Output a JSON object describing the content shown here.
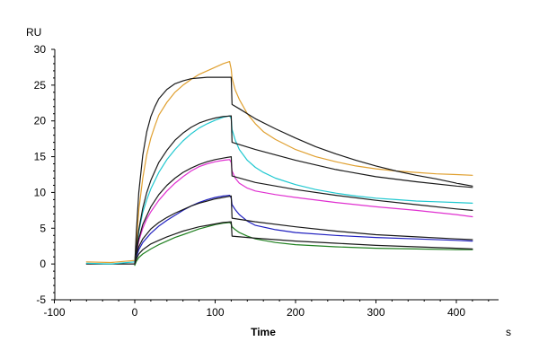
{
  "chart_data": {
    "type": "line",
    "title": "",
    "xlabel": "Time",
    "ylabel": "",
    "y_unit": "RU",
    "x_unit": "s",
    "xlim": [
      -100,
      440
    ],
    "ylim": [
      -5,
      30
    ],
    "x_ticks": [
      -100,
      0,
      100,
      200,
      300,
      400
    ],
    "y_ticks": [
      -5,
      0,
      5,
      10,
      15,
      20,
      25,
      30
    ],
    "grid": false,
    "legend": "none",
    "series": [
      {
        "color": "#E0A030",
        "x": [
          -60,
          -30,
          0,
          2,
          5,
          10,
          15,
          20,
          25,
          30,
          40,
          50,
          60,
          70,
          80,
          90,
          100,
          110,
          118,
          120,
          121,
          125,
          130,
          140,
          150,
          160,
          175,
          200,
          225,
          250,
          275,
          300,
          325,
          350,
          375,
          400,
          420
        ],
        "y": [
          0.3,
          0.2,
          0.5,
          3.0,
          7.5,
          12.0,
          15.3,
          17.6,
          19.3,
          20.8,
          22.6,
          24.0,
          25.0,
          25.8,
          26.5,
          27.0,
          27.5,
          28.0,
          28.3,
          27.2,
          26.0,
          24.3,
          23.0,
          21.0,
          19.6,
          18.5,
          17.4,
          16.0,
          15.0,
          14.3,
          13.7,
          13.3,
          13.0,
          12.8,
          12.6,
          12.5,
          12.4
        ]
      },
      {
        "color": "#1a1a1a",
        "x": [
          -60,
          -30,
          0,
          2,
          5,
          10,
          15,
          20,
          25,
          30,
          40,
          50,
          60,
          70,
          80,
          90,
          100,
          110,
          120,
          121,
          130,
          150,
          175,
          200,
          225,
          250,
          275,
          300,
          325,
          350,
          375,
          400,
          420
        ],
        "y": [
          0,
          0,
          0,
          4.5,
          10.0,
          15.2,
          18.5,
          20.6,
          22.0,
          23.1,
          24.4,
          25.2,
          25.6,
          25.9,
          26.0,
          26.1,
          26.1,
          26.1,
          26.1,
          22.3,
          21.7,
          20.3,
          18.9,
          17.6,
          16.4,
          15.4,
          14.5,
          13.7,
          13.0,
          12.4,
          11.9,
          11.3,
          10.9
        ]
      },
      {
        "color": "#20C8D0",
        "x": [
          -60,
          -30,
          0,
          2,
          5,
          10,
          15,
          20,
          30,
          40,
          50,
          60,
          70,
          80,
          90,
          100,
          110,
          118,
          120,
          121,
          125,
          130,
          140,
          150,
          160,
          175,
          200,
          225,
          250,
          275,
          300,
          325,
          350,
          375,
          400,
          420
        ],
        "y": [
          0.1,
          0,
          0.3,
          2.0,
          4.5,
          7.2,
          9.0,
          10.5,
          12.8,
          14.6,
          16.0,
          17.2,
          18.2,
          19.0,
          19.6,
          20.1,
          20.5,
          20.7,
          20.3,
          18.8,
          17.3,
          16.0,
          14.5,
          13.5,
          12.8,
          12.0,
          11.1,
          10.4,
          9.9,
          9.5,
          9.2,
          9.0,
          8.8,
          8.7,
          8.6,
          8.5
        ]
      },
      {
        "color": "#1a1a1a",
        "x": [
          0,
          2,
          5,
          10,
          15,
          20,
          30,
          40,
          50,
          60,
          70,
          80,
          90,
          100,
          110,
          120,
          121,
          150,
          200,
          250,
          300,
          350,
          400,
          420
        ],
        "y": [
          0,
          2.2,
          4.8,
          7.8,
          10.0,
          11.7,
          14.2,
          15.9,
          17.3,
          18.3,
          19.1,
          19.7,
          20.1,
          20.4,
          20.6,
          20.7,
          17.0,
          16.0,
          14.5,
          13.2,
          12.2,
          11.5,
          10.9,
          10.7
        ]
      },
      {
        "color": "#E030D0",
        "x": [
          0,
          2,
          5,
          10,
          15,
          20,
          30,
          40,
          50,
          60,
          70,
          80,
          90,
          100,
          110,
          118,
          120,
          121,
          125,
          130,
          140,
          150,
          175,
          200,
          250,
          300,
          350,
          400,
          420
        ],
        "y": [
          0,
          1.5,
          3.2,
          5.0,
          6.3,
          7.3,
          8.9,
          10.2,
          11.3,
          12.2,
          13.0,
          13.6,
          14.0,
          14.3,
          14.5,
          14.6,
          14.2,
          13.0,
          12.0,
          11.3,
          10.6,
          10.2,
          9.7,
          9.3,
          8.6,
          8.0,
          7.5,
          6.9,
          6.6
        ]
      },
      {
        "color": "#1a1a1a",
        "x": [
          0,
          2,
          5,
          10,
          20,
          30,
          40,
          50,
          60,
          70,
          80,
          90,
          100,
          110,
          120,
          121,
          150,
          200,
          250,
          300,
          350,
          400,
          420
        ],
        "y": [
          0,
          1.7,
          3.5,
          5.5,
          8.0,
          9.7,
          11.0,
          12.0,
          12.8,
          13.4,
          13.9,
          14.3,
          14.6,
          14.8,
          15.0,
          12.3,
          11.4,
          10.4,
          9.6,
          8.9,
          8.3,
          7.7,
          7.5
        ]
      },
      {
        "color": "#2020C0",
        "x": [
          0,
          2,
          5,
          10,
          20,
          30,
          40,
          50,
          60,
          70,
          80,
          90,
          100,
          110,
          118,
          120,
          121,
          125,
          130,
          140,
          150,
          175,
          200,
          250,
          300,
          350,
          400,
          420
        ],
        "y": [
          0,
          1.0,
          2.0,
          3.0,
          4.3,
          5.3,
          6.1,
          6.8,
          7.5,
          8.1,
          8.6,
          9.0,
          9.3,
          9.5,
          9.6,
          9.2,
          8.3,
          7.6,
          6.9,
          6.0,
          5.4,
          4.8,
          4.4,
          4.0,
          3.7,
          3.5,
          3.3,
          3.2
        ]
      },
      {
        "color": "#1a1a1a",
        "x": [
          0,
          2,
          5,
          10,
          20,
          30,
          40,
          50,
          60,
          70,
          80,
          90,
          100,
          110,
          120,
          121,
          150,
          200,
          250,
          300,
          350,
          400,
          420
        ],
        "y": [
          0,
          1.3,
          2.4,
          3.5,
          4.9,
          5.8,
          6.5,
          7.1,
          7.6,
          8.1,
          8.5,
          8.8,
          9.1,
          9.3,
          9.5,
          6.4,
          5.9,
          5.2,
          4.6,
          4.1,
          3.8,
          3.5,
          3.4
        ]
      },
      {
        "color": "#208020",
        "x": [
          0,
          2,
          5,
          10,
          20,
          30,
          40,
          50,
          60,
          70,
          80,
          90,
          100,
          110,
          118,
          120,
          121,
          125,
          130,
          140,
          150,
          175,
          200,
          250,
          300,
          350,
          400,
          420
        ],
        "y": [
          -0.2,
          0.4,
          0.9,
          1.4,
          2.1,
          2.7,
          3.2,
          3.7,
          4.1,
          4.5,
          4.9,
          5.2,
          5.5,
          5.7,
          5.8,
          5.6,
          5.2,
          4.8,
          4.4,
          3.9,
          3.5,
          3.0,
          2.7,
          2.4,
          2.2,
          2.1,
          2.0,
          2.0
        ]
      },
      {
        "color": "#1a1a1a",
        "x": [
          0,
          2,
          5,
          10,
          20,
          30,
          40,
          50,
          60,
          70,
          80,
          90,
          100,
          110,
          120,
          121,
          150,
          200,
          250,
          300,
          350,
          400,
          420
        ],
        "y": [
          0,
          0.7,
          1.4,
          2.0,
          2.8,
          3.3,
          3.8,
          4.2,
          4.6,
          4.9,
          5.2,
          5.4,
          5.6,
          5.8,
          5.9,
          3.9,
          3.6,
          3.2,
          2.9,
          2.6,
          2.4,
          2.2,
          2.1
        ]
      }
    ]
  }
}
